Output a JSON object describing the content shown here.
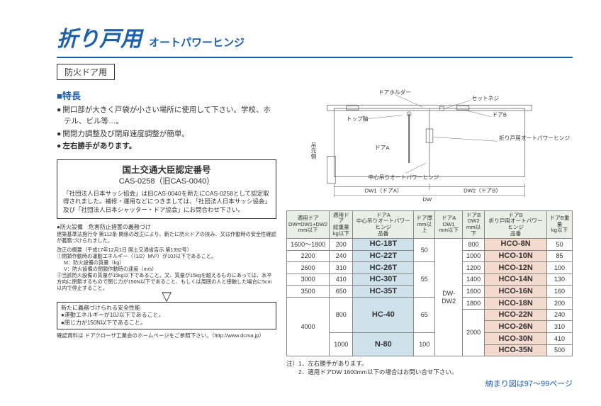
{
  "colors": {
    "accent": "#1e5fa8",
    "col_a_bg": "#cfe1eb",
    "col_b_bg": "#f4d9ce",
    "th_bg": "#e9efe5"
  },
  "title": {
    "main": "折り戸用",
    "sub": "オートパワーヒンジ"
  },
  "tag": "防火ドア用",
  "section_head": "■特長",
  "bullets": [
    "開口部が大きく戸袋が小さい場所に使用して下さい。学校、ホテル、ビル等…。",
    "開閉力調整及び閉扉速度調整が簡単。",
    "左右勝手があります。"
  ],
  "cert": {
    "title": "国土交通大臣認定番号",
    "num": "CAS-0258（旧CAS-0040）",
    "body": "「社団法人日本サッシ協会」は旧CAS-0040を新たにCAS-0258として認定取得されました。補修・運用などにつきましては、「社団法人日本サッシ協会」及び「社団法人日本シャッター・ドア協会」にお問合わせ下さい。"
  },
  "fine": {
    "label": "●防火設備　危害防止措置の義務づけ",
    "lead": "建築基準法施行令 第112条 関係の改正により、新たに防火ドアの挟み、又は作動時の安全性確認が義務づけられました。",
    "sub1_h": "改正の概要（平成17年12月1日 国土交通省告示 第1392号）",
    "sub1_a": "①閉鎖作動時の運動エネルギー（（1/2）MV²）が10J以下であること。",
    "sub1_b": "M：防火設備の質量（kg）",
    "sub1_c": "V：防火設備の閉鎖作動時の速度（m/s）",
    "sub1_d": "②当該防火設備の質量が15kg以下であること。又、質量が15kgを超えるものにあっては、水平方向に閉鎖するもので閉じ力が150N以下であること、もしくは周囲の人と接触した場合に5cm以内で停止すること。"
  },
  "new_req": {
    "head": "新たに義務づけられる安全性能",
    "a": "●運動エネルギーが10J以下であること。",
    "b": "●閉じ力が150N以下であること。"
  },
  "confirm": "確認資料は ドアクローザ工業会のホームページをご参照下さい。（http://www.dcma.jp）",
  "diagram_labels": {
    "holder": "ドアホルダー",
    "setscrew": "セットネジ",
    "topaxis": "トップ軸",
    "doorA": "ドアA",
    "doorB": "ドアB",
    "foldhinge": "折り戸用オートパワーヒンジ",
    "centerhinge": "中心吊りオートパワーヒンジ",
    "tsurimoto": "吊元側",
    "dw1": "DW1（ドアA）",
    "dw2": "DW2（ドアB）",
    "dw": "DW"
  },
  "table": {
    "headers": [
      "適用ドア\nDW=DW1+DW2\nmm以下",
      "適用ドア\n総重量\nkg以下",
      "ドアA\n中心吊りオートパワーヒンジ\n品番",
      "ドア厚\nmm以上",
      "ドアA\nDW1\nmm以下",
      "ドアB\nDW2\nmm以下",
      "ドアB\n折り戸用オートパワーヒンジ\n品番",
      "ドアB重量\nkg以下"
    ],
    "rows": [
      {
        "dw": "1600～1800",
        "wt": "200",
        "a": "HC-18T",
        "t": "50",
        "dw1": "DW-DW2",
        "dw2": "800",
        "b": "HCO-8N",
        "bw": "50"
      },
      {
        "dw": "2200",
        "wt": "240",
        "a": "HC-22T",
        "t": "",
        "dw1": "",
        "dw2": "1000",
        "b": "HCO-10N",
        "bw": "85"
      },
      {
        "dw": "2600",
        "wt": "310",
        "a": "HC-26T",
        "t": "55",
        "dw1": "",
        "dw2": "1200",
        "b": "HCO-12N",
        "bw": "100"
      },
      {
        "dw": "3000",
        "wt": "410",
        "a": "HC-30T",
        "t": "",
        "dw1": "",
        "dw2": "1400",
        "b": "HCO-14N",
        "bw": "130"
      },
      {
        "dw": "3500",
        "wt": "650",
        "a": "HC-35T",
        "t": "",
        "dw1": "",
        "dw2": "1600",
        "b": "HCO-16N",
        "bw": "160"
      },
      {
        "dw": "4000",
        "wt": "800",
        "a": "HC-40",
        "t": "65",
        "dw1": "",
        "dw2": "1800",
        "b": "HCO-18N",
        "bw": "200"
      },
      {
        "dw": "",
        "wt": "",
        "a": "",
        "t": "",
        "dw1": "",
        "dw2": "2000",
        "b": "HCO-22N",
        "bw": "240"
      },
      {
        "dw": "",
        "wt": "",
        "a": "",
        "t": "",
        "dw1": "",
        "dw2": "",
        "b": "HCO-26N",
        "bw": "310"
      },
      {
        "dw": "",
        "wt": "1000",
        "a": "N-80",
        "t": "100",
        "dw1": "",
        "dw2": "",
        "b": "HCO-30N",
        "bw": "410"
      },
      {
        "dw": "",
        "wt": "",
        "a": "",
        "t": "",
        "dw1": "",
        "dw2": "",
        "b": "HCO-35N",
        "bw": "500"
      }
    ]
  },
  "notes": "注）1．左右勝手があります。\n　　2．適用ドアDW 1600mm以下の場合はお問い合せ下さい。",
  "page_ref": "納まり図は97～99ページ"
}
